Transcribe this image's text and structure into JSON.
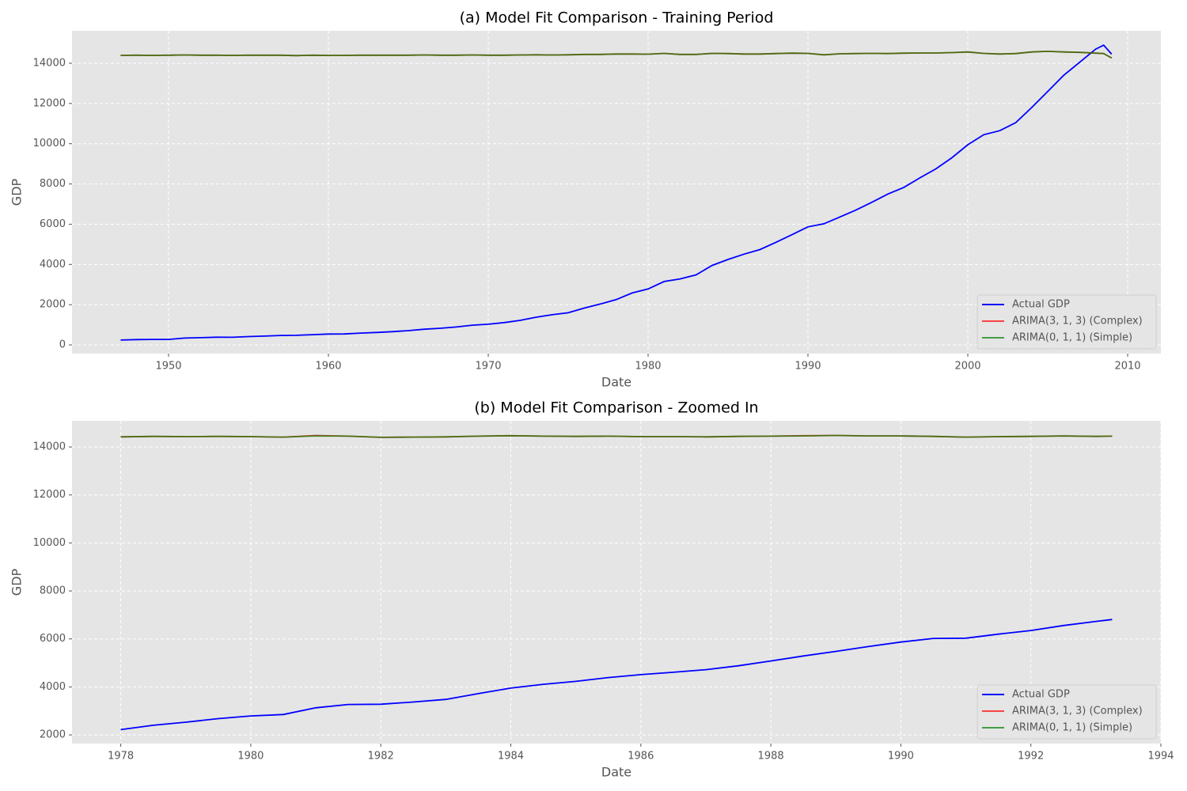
{
  "chart_data": [
    {
      "type": "line",
      "title": "(a) Model Fit Comparison - Training Period",
      "xlabel": "Date",
      "ylabel": "GDP",
      "x": [
        1947,
        1948,
        1949,
        1950,
        1951,
        1952,
        1953,
        1954,
        1955,
        1956,
        1957,
        1958,
        1959,
        1960,
        1961,
        1962,
        1963,
        1964,
        1965,
        1966,
        1967,
        1968,
        1969,
        1970,
        1971,
        1972,
        1973,
        1974,
        1975,
        1976,
        1977,
        1978,
        1979,
        1980,
        1981,
        1982,
        1983,
        1984,
        1985,
        1986,
        1987,
        1988,
        1989,
        1990,
        1991,
        1992,
        1993,
        1994,
        1995,
        1996,
        1997,
        1998,
        1999,
        2000,
        2001,
        2002,
        2003,
        2004,
        2005,
        2006,
        2007,
        2008,
        2008.5,
        2009
      ],
      "series": [
        {
          "name": "Actual GDP",
          "color": "#0000ff",
          "values": [
            243,
            265,
            272,
            275,
            340,
            360,
            385,
            380,
            415,
            440,
            470,
            480,
            510,
            540,
            545,
            590,
            620,
            660,
            710,
            780,
            830,
            890,
            980,
            1030,
            1110,
            1220,
            1380,
            1500,
            1600,
            1830,
            2030,
            2250,
            2580,
            2780,
            3150,
            3280,
            3480,
            3950,
            4250,
            4510,
            4740,
            5100,
            5480,
            5870,
            6020,
            6360,
            6700,
            7090,
            7500,
            7830,
            8300,
            8750,
            9300,
            9950,
            10450,
            10650,
            11050,
            11800,
            12600,
            13400,
            14050,
            14700,
            14900,
            14450
          ]
        },
        {
          "name": "ARIMA(3, 1, 3) (Complex)",
          "color": "#ff0000",
          "values": [
            14390,
            14400,
            14390,
            14400,
            14410,
            14400,
            14400,
            14390,
            14400,
            14400,
            14400,
            14380,
            14400,
            14390,
            14390,
            14400,
            14400,
            14400,
            14400,
            14410,
            14400,
            14400,
            14410,
            14400,
            14400,
            14410,
            14420,
            14410,
            14420,
            14440,
            14440,
            14460,
            14460,
            14450,
            14490,
            14440,
            14440,
            14490,
            14480,
            14460,
            14460,
            14480,
            14500,
            14490,
            14420,
            14470,
            14480,
            14490,
            14480,
            14500,
            14510,
            14510,
            14530,
            14560,
            14490,
            14460,
            14480,
            14560,
            14590,
            14560,
            14540,
            14500,
            14480,
            14260
          ]
        },
        {
          "name": "ARIMA(0, 1, 1) (Simple)",
          "color": "#008000",
          "values": [
            14390,
            14400,
            14390,
            14400,
            14410,
            14400,
            14400,
            14390,
            14400,
            14400,
            14400,
            14380,
            14400,
            14390,
            14390,
            14400,
            14400,
            14400,
            14400,
            14410,
            14400,
            14400,
            14410,
            14400,
            14400,
            14410,
            14420,
            14410,
            14420,
            14440,
            14440,
            14460,
            14460,
            14450,
            14490,
            14440,
            14440,
            14490,
            14480,
            14460,
            14460,
            14480,
            14500,
            14490,
            14420,
            14470,
            14480,
            14490,
            14480,
            14500,
            14510,
            14510,
            14530,
            14560,
            14490,
            14460,
            14480,
            14560,
            14590,
            14560,
            14540,
            14500,
            14480,
            14260
          ]
        }
      ],
      "xlim": [
        1943.96,
        2012.08
      ],
      "xticks": [
        1950,
        1960,
        1970,
        1980,
        1990,
        2000,
        2010
      ],
      "ylim": [
        -430,
        15610
      ],
      "yticks": [
        0,
        2000,
        4000,
        6000,
        8000,
        10000,
        12000,
        14000
      ],
      "grid": true,
      "legend": "lower right"
    },
    {
      "type": "line",
      "title": "(b) Model Fit Comparison - Zoomed In",
      "xlabel": "Date",
      "ylabel": "GDP",
      "x": [
        1978,
        1978.5,
        1979,
        1979.5,
        1980,
        1980.5,
        1981,
        1981.5,
        1982,
        1982.5,
        1983,
        1983.5,
        1984,
        1984.5,
        1985,
        1985.5,
        1986,
        1986.5,
        1987,
        1987.5,
        1988,
        1988.5,
        1989,
        1989.5,
        1990,
        1990.5,
        1991,
        1991.5,
        1992,
        1992.5,
        1993,
        1993.25
      ],
      "series": [
        {
          "name": "Actual GDP",
          "color": "#0000ff",
          "values": [
            2220,
            2400,
            2530,
            2680,
            2790,
            2850,
            3130,
            3270,
            3280,
            3370,
            3480,
            3720,
            3950,
            4110,
            4230,
            4390,
            4510,
            4610,
            4720,
            4880,
            5080,
            5290,
            5480,
            5680,
            5870,
            6020,
            6030,
            6200,
            6350,
            6560,
            6730,
            6810
          ]
        },
        {
          "name": "ARIMA(3, 1, 3) (Complex)",
          "color": "#ff0000",
          "values": [
            14420,
            14440,
            14430,
            14440,
            14430,
            14410,
            14480,
            14450,
            14400,
            14410,
            14420,
            14450,
            14470,
            14450,
            14440,
            14450,
            14430,
            14430,
            14420,
            14440,
            14450,
            14470,
            14480,
            14460,
            14460,
            14440,
            14410,
            14430,
            14440,
            14460,
            14440,
            14450
          ]
        },
        {
          "name": "ARIMA(0, 1, 1) (Simple)",
          "color": "#008000",
          "values": [
            14420,
            14440,
            14430,
            14440,
            14430,
            14410,
            14460,
            14450,
            14400,
            14410,
            14420,
            14450,
            14470,
            14450,
            14440,
            14450,
            14430,
            14430,
            14420,
            14440,
            14450,
            14460,
            14480,
            14460,
            14460,
            14440,
            14410,
            14430,
            14440,
            14460,
            14440,
            14450
          ]
        }
      ],
      "xlim": [
        1977.25,
        1994
      ],
      "xticks": [
        1978,
        1980,
        1982,
        1984,
        1986,
        1988,
        1990,
        1992,
        1994
      ],
      "ylim": [
        1640,
        15090
      ],
      "yticks": [
        2000,
        4000,
        6000,
        8000,
        10000,
        12000,
        14000
      ],
      "grid": true,
      "legend": "lower right"
    }
  ]
}
